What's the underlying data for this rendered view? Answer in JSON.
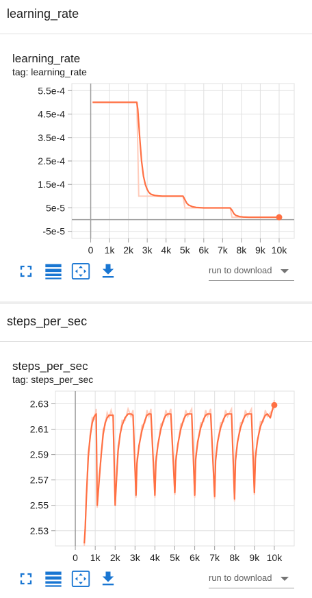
{
  "sections": [
    {
      "header": "learning_rate",
      "card_title": "learning_rate",
      "card_tag": "tag: learning_rate",
      "toolbar": {
        "download_label": "run to download"
      }
    },
    {
      "header": "steps_per_sec",
      "card_title": "steps_per_sec",
      "card_tag": "tag: steps_per_sec",
      "toolbar": {
        "download_label": "run to download"
      }
    }
  ],
  "colors": {
    "accent": "#ff7043",
    "smoothed_faint": "#ffccbc",
    "icon_blue": "#1976d2",
    "grid": "#e0e0e0",
    "axis": "#9e9e9e"
  },
  "icons": [
    "fullscreen-icon",
    "toggle-y-log-icon",
    "fit-domain-icon",
    "download-icon"
  ],
  "chart_data": [
    {
      "type": "line",
      "title": "learning_rate",
      "xlabel": "",
      "ylabel": "",
      "xlim": [
        -1000,
        10800
      ],
      "ylim": [
        -8e-05,
        0.00058
      ],
      "x_ticks": [
        0,
        1000,
        2000,
        3000,
        4000,
        5000,
        6000,
        7000,
        8000,
        9000,
        10000
      ],
      "x_tick_labels": [
        "0",
        "1k",
        "2k",
        "3k",
        "4k",
        "5k",
        "6k",
        "7k",
        "8k",
        "9k",
        "10k"
      ],
      "y_ticks": [
        -5e-05,
        5e-05,
        0.00015,
        0.00025,
        0.00035,
        0.00045,
        0.00055
      ],
      "y_tick_labels": [
        "-5e-5",
        "5e-5",
        "1.5e-4",
        "2.5e-4",
        "3.5e-4",
        "4.5e-4",
        "5.5e-4"
      ],
      "grid": true,
      "series": [
        {
          "values_x": [
            100,
            2450,
            2500,
            2600,
            2700,
            2800,
            2900,
            3000,
            3100,
            3200,
            3400,
            3600,
            3800,
            4000,
            4500,
            4900,
            5000,
            5100,
            5200,
            5400,
            5600,
            6000,
            6500,
            7400,
            7500,
            7600,
            7700,
            7900,
            8100,
            8400,
            9000,
            10000
          ],
          "values_y": [
            0.0005,
            0.0005,
            0.00047,
            0.00035,
            0.00025,
            0.000185,
            0.00015,
            0.000128,
            0.000115,
            0.000108,
            0.000103,
            0.000101,
            0.0001,
            0.0001,
            0.0001,
            0.0001,
            8.5e-05,
            7e-05,
            6.2e-05,
            5.5e-05,
            5.2e-05,
            5e-05,
            5e-05,
            5e-05,
            4e-05,
            2.5e-05,
            1.8e-05,
            1.3e-05,
            1.1e-05,
            1e-05,
            1e-05,
            1e-05
          ]
        }
      ],
      "raw_series": {
        "values_x": [
          100,
          2450,
          2550,
          3000,
          4900,
          5000,
          7400,
          7500,
          10000
        ],
        "values_y": [
          0.0005,
          0.0005,
          0.0001,
          0.0001,
          0.0001,
          5e-05,
          5e-05,
          1e-05,
          1e-05
        ]
      },
      "last_point": {
        "x": 10000,
        "y": 1e-05
      }
    },
    {
      "type": "line",
      "title": "steps_per_sec",
      "xlabel": "",
      "ylabel": "",
      "xlim": [
        -1000,
        11000
      ],
      "ylim": [
        2.518,
        2.64
      ],
      "x_ticks": [
        0,
        1000,
        2000,
        3000,
        4000,
        5000,
        6000,
        7000,
        8000,
        9000,
        10000
      ],
      "x_tick_labels": [
        "0",
        "1k",
        "2k",
        "3k",
        "4k",
        "5k",
        "6k",
        "7k",
        "8k",
        "9k",
        "10k"
      ],
      "y_ticks": [
        2.53,
        2.55,
        2.57,
        2.59,
        2.61,
        2.63
      ],
      "y_tick_labels": [
        "2.53",
        "2.55",
        "2.57",
        "2.59",
        "2.61",
        "2.63"
      ],
      "grid": true,
      "series": [
        {
          "values_x": [
            450,
            500,
            550,
            650,
            750,
            850,
            950,
            1050,
            1100,
            1200,
            1300,
            1400,
            1500,
            1600,
            1700,
            1800,
            1900,
            2000,
            2100,
            2150,
            2250,
            2350,
            2500,
            2650,
            2800,
            2900,
            3050,
            3100,
            3200,
            3350,
            3500,
            3600,
            3700,
            3800,
            4000,
            4050,
            4150,
            4300,
            4450,
            4550,
            4650,
            4800,
            5000,
            5050,
            5150,
            5300,
            5450,
            5550,
            5650,
            5850,
            6000,
            6050,
            6150,
            6300,
            6450,
            6550,
            6650,
            6800,
            7000,
            7050,
            7150,
            7300,
            7450,
            7550,
            7650,
            7850,
            8000,
            8050,
            8150,
            8300,
            8450,
            8550,
            8650,
            8850,
            9000,
            9050,
            9150,
            9300,
            9450,
            9550,
            9650,
            9800,
            9950,
            10000
          ],
          "values_y": [
            2.52,
            2.532,
            2.555,
            2.588,
            2.605,
            2.615,
            2.62,
            2.622,
            2.55,
            2.57,
            2.59,
            2.606,
            2.615,
            2.619,
            2.621,
            2.621,
            2.621,
            2.55,
            2.58,
            2.593,
            2.606,
            2.613,
            2.619,
            2.622,
            2.622,
            2.621,
            2.558,
            2.583,
            2.597,
            2.609,
            2.617,
            2.621,
            2.622,
            2.622,
            2.558,
            2.584,
            2.598,
            2.61,
            2.618,
            2.621,
            2.622,
            2.622,
            2.56,
            2.585,
            2.598,
            2.61,
            2.618,
            2.621,
            2.622,
            2.622,
            2.558,
            2.586,
            2.6,
            2.611,
            2.618,
            2.621,
            2.622,
            2.622,
            2.557,
            2.585,
            2.6,
            2.611,
            2.618,
            2.621,
            2.622,
            2.622,
            2.555,
            2.585,
            2.6,
            2.611,
            2.618,
            2.621,
            2.622,
            2.622,
            2.56,
            2.587,
            2.601,
            2.612,
            2.618,
            2.621,
            2.622,
            2.619,
            2.628,
            2.629
          ]
        }
      ],
      "last_point": {
        "x": 10000,
        "y": 2.629
      }
    }
  ]
}
